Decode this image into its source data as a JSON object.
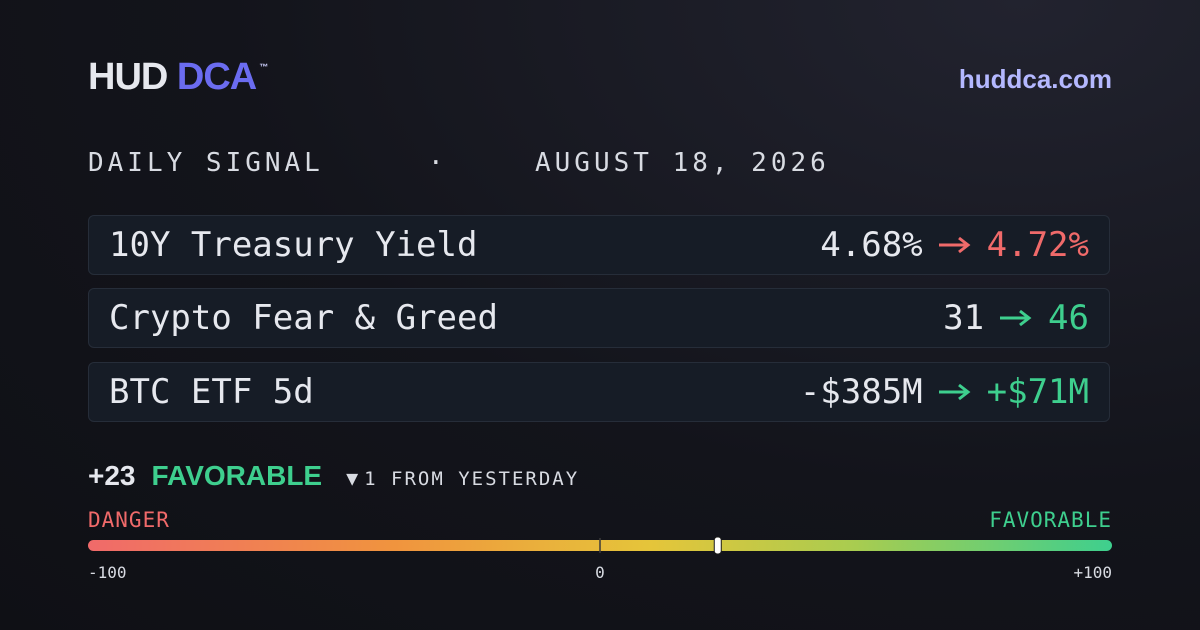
{
  "header": {
    "brand": "HUD",
    "brand_accent": "DCA",
    "trademark": "™",
    "url": "huddca.com"
  },
  "dateline": {
    "label": "DAILY SIGNAL",
    "separator": "·",
    "date": "AUGUST 18, 2026"
  },
  "metrics": [
    {
      "name": "10Y Treasury Yield",
      "from": "4.68%",
      "to": "4.72%",
      "color": "#f06a6a"
    },
    {
      "name": "Crypto Fear & Greed",
      "from": "31",
      "to": "46",
      "color": "#3ecf8e"
    },
    {
      "name": "BTC ETF 5d",
      "from": "-$385M",
      "to": "+$71M",
      "color": "#3ecf8e"
    }
  ],
  "signal": {
    "score": 23,
    "score_label": "+23",
    "rating": "FAVORABLE",
    "rating_color": "#3ecf8e",
    "change_marker": "▼",
    "change": "1 FROM YESTERDAY"
  },
  "gauge": {
    "left_label": "DANGER",
    "right_label": "FAVORABLE",
    "range": [
      -100,
      100
    ],
    "ticks": [
      {
        "value": -100,
        "label": "-100"
      },
      0,
      {
        "value": 100,
        "label": "+100"
      }
    ]
  }
}
